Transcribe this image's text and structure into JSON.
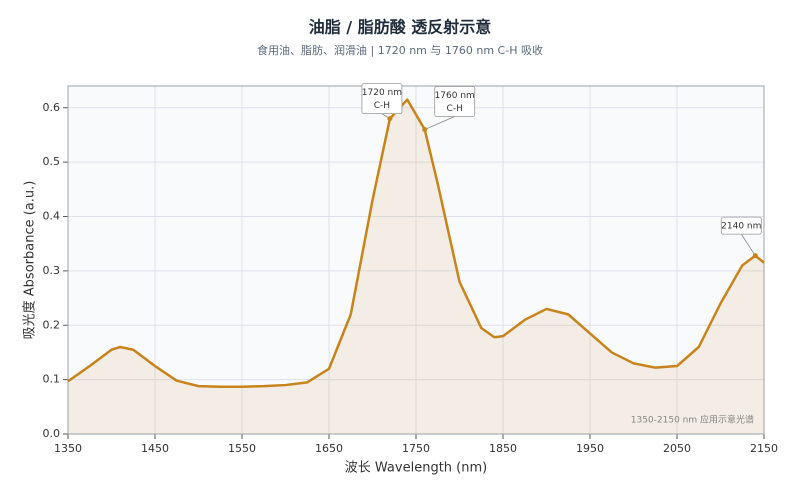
{
  "chart_data": {
    "type": "line",
    "title": "油脂 / 脂肪酸  透反射示意",
    "subtitle": "食用油、脂肪、润滑油 | 1720 nm 与 1760 nm C-H 吸收",
    "x_label": "波长 Wavelength (nm)",
    "y_label": "吸光度 Absorbance (a.u.)",
    "footnote": "1350-2150 nm 应用示意光谱",
    "x": [
      1350,
      1375,
      1400,
      1410,
      1425,
      1450,
      1475,
      1500,
      1525,
      1550,
      1575,
      1600,
      1625,
      1650,
      1675,
      1700,
      1720,
      1740,
      1760,
      1775,
      1800,
      1825,
      1840,
      1850,
      1875,
      1900,
      1925,
      1950,
      1975,
      2000,
      2025,
      2050,
      2075,
      2100,
      2125,
      2140,
      2150
    ],
    "series": [
      {
        "color": "#c8831a",
        "values": [
          0.097,
          0.125,
          0.155,
          0.16,
          0.155,
          0.125,
          0.098,
          0.088,
          0.087,
          0.087,
          0.088,
          0.09,
          0.095,
          0.12,
          0.22,
          0.43,
          0.58,
          0.615,
          0.56,
          0.46,
          0.28,
          0.195,
          0.178,
          0.18,
          0.21,
          0.23,
          0.22,
          0.185,
          0.15,
          0.13,
          0.122,
          0.125,
          0.16,
          0.24,
          0.31,
          0.328,
          0.315
        ]
      }
    ],
    "xlim": [
      1350,
      2150
    ],
    "xticks": [
      1350,
      1450,
      1550,
      1650,
      1750,
      1850,
      1950,
      2050,
      2150
    ],
    "ylim": [
      0,
      0.64
    ],
    "yticks": [
      {
        "value": 0,
        "label": "0.0"
      },
      0.1,
      0.2,
      0.3,
      0.4,
      0.5,
      0.6
    ],
    "grid": true,
    "annotations": [
      {
        "lines": [
          "1720 nm",
          "C-H"
        ],
        "x": 1720,
        "y": 0.58
      },
      {
        "lines": [
          "1760 nm",
          "C-H"
        ],
        "x": 1760,
        "y": 0.56
      },
      {
        "lines": [
          "2140 nm"
        ],
        "x": 2140,
        "y": 0.328
      }
    ]
  }
}
